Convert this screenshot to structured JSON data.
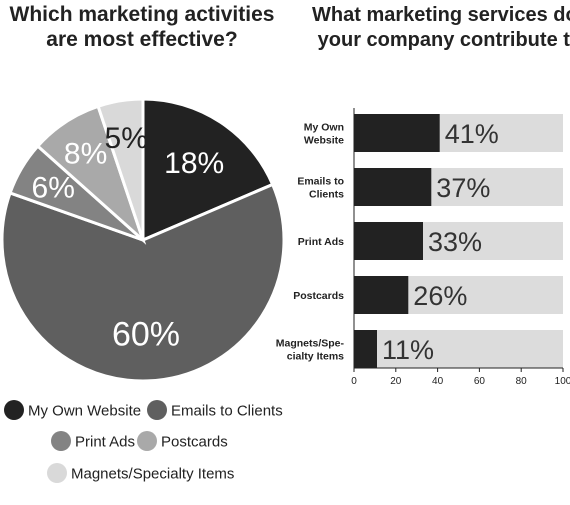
{
  "chart_data": [
    {
      "type": "pie",
      "title": "Which marketing activities are most effective?",
      "title_lines": [
        "Which marketing activities",
        "are most effective?"
      ],
      "categories": [
        "My Own Website",
        "Emails to Clients",
        "Print Ads",
        "Postcards",
        "Magnets/Specialty Items"
      ],
      "values": [
        18,
        60,
        6,
        8,
        5
      ],
      "value_labels": [
        "18%",
        "60%",
        "6%",
        "8%",
        "5%"
      ],
      "colors": [
        "#222222",
        "#5f5f5f",
        "#838383",
        "#a9a9a9",
        "#d9d9d9"
      ],
      "label_colors": [
        "#ffffff",
        "#ffffff",
        "#ffffff",
        "#ffffff",
        "#222222"
      ],
      "legend_placement": "bottom"
    },
    {
      "type": "bar",
      "orientation": "horizontal",
      "stacked": true,
      "title": "What marketing services does your company contribute to?",
      "title_lines": [
        "What marketing services does",
        "your company contribute to?"
      ],
      "categories": [
        "My Own Website",
        "Emails to Clients",
        "Print Ads",
        "Postcards",
        "Magnets/Specialty Items"
      ],
      "category_label_lines": [
        [
          "My Own",
          "Website"
        ],
        [
          "Emails to",
          "Clients"
        ],
        [
          "Print Ads"
        ],
        [
          "Postcards"
        ],
        [
          "Magnets/Spe-",
          "cialty Items"
        ]
      ],
      "values": [
        41,
        37,
        33,
        26,
        11
      ],
      "value_labels": [
        "41%",
        "37%",
        "33%",
        "26%",
        "11%"
      ],
      "xlim": [
        0,
        100
      ],
      "xticks": [
        0,
        20,
        40,
        60,
        80,
        100
      ],
      "bar_color": "#222222",
      "track_color": "#dcdcdc",
      "grid": false
    }
  ]
}
